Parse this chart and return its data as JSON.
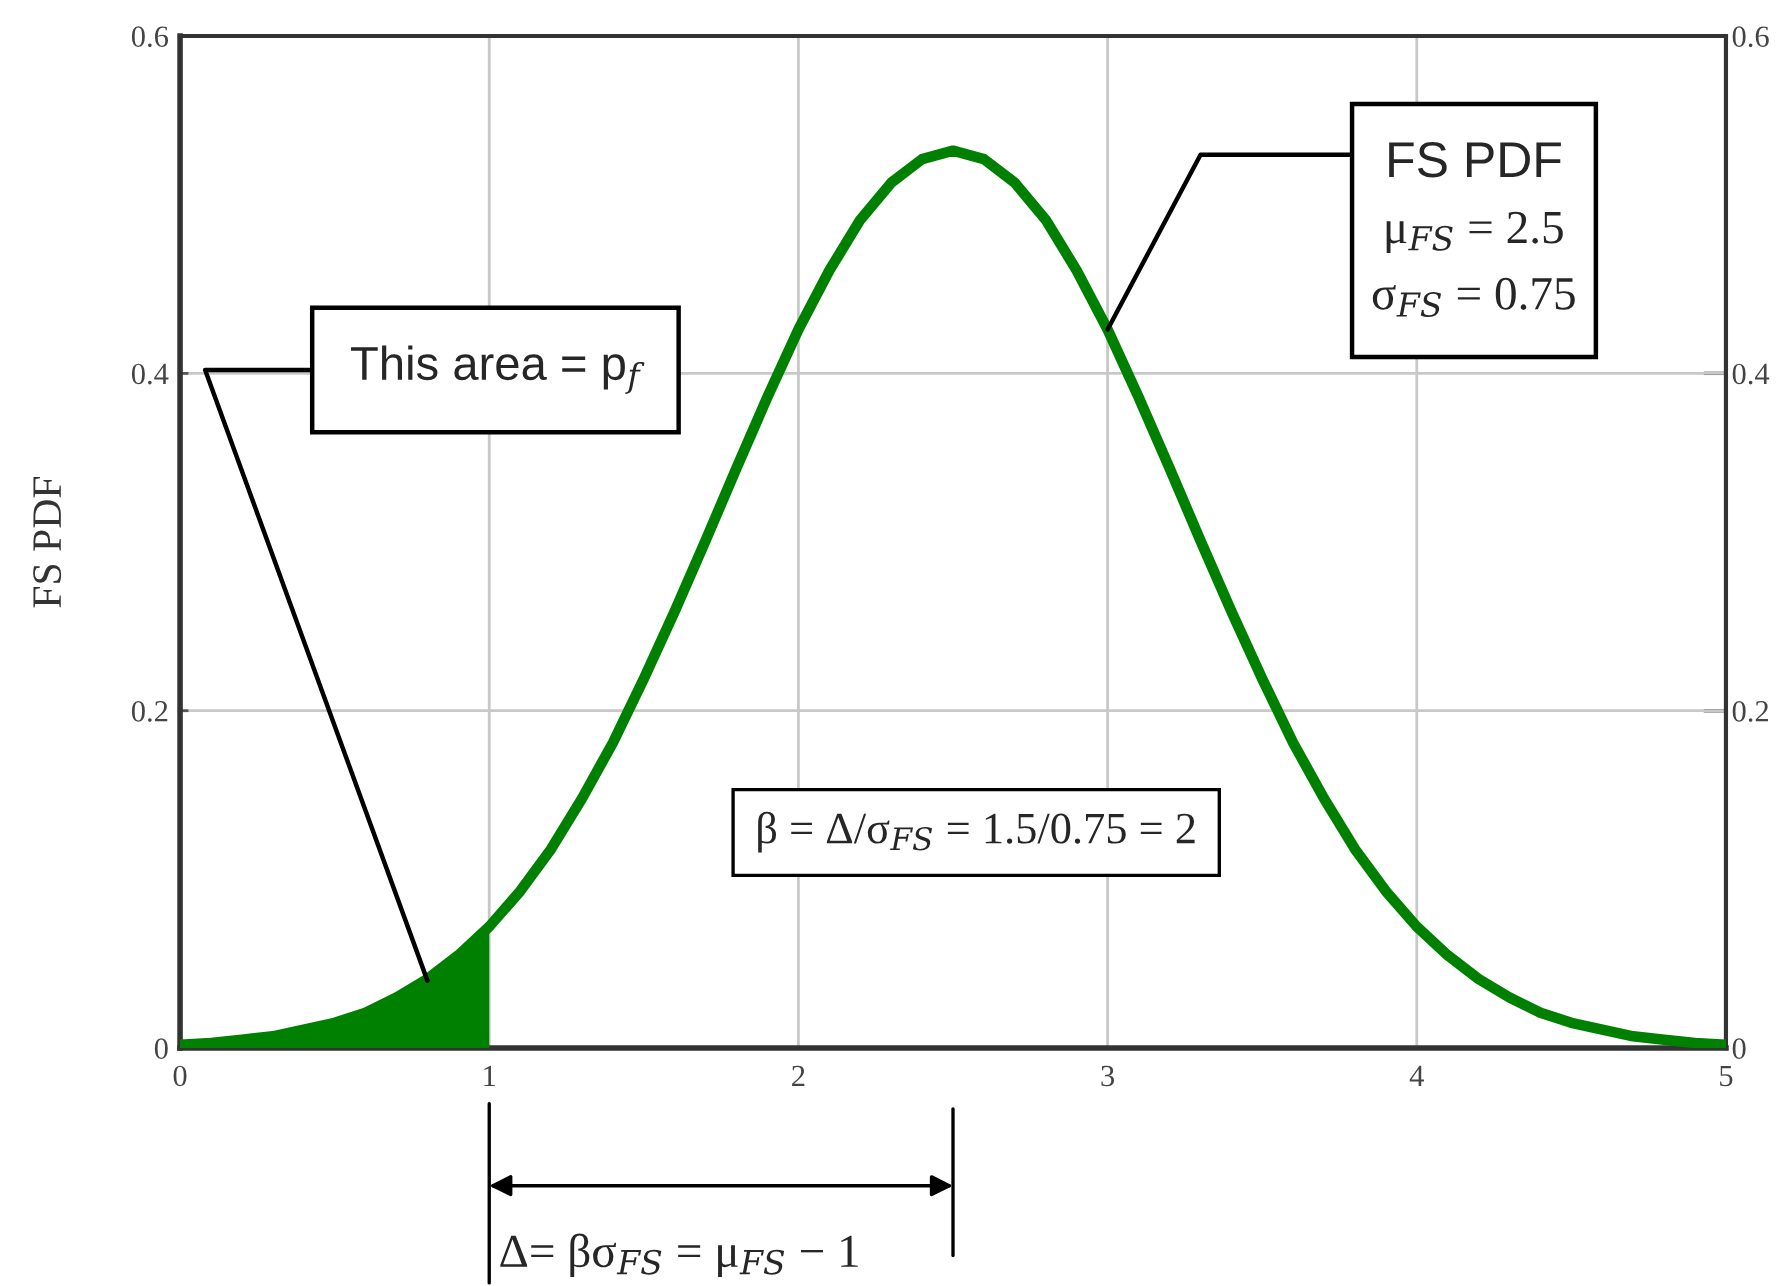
{
  "chart_data": {
    "type": "line",
    "ylabel": "FS PDF",
    "x": [
      0,
      0.1,
      0.2,
      0.3,
      0.4,
      0.5,
      0.6,
      0.7,
      0.8,
      0.9,
      1,
      1.1,
      1.2,
      1.3,
      1.4,
      1.5,
      1.6,
      1.7,
      1.8,
      1.9,
      2,
      2.1,
      2.2,
      2.3,
      2.4,
      2.5,
      2.6,
      2.7,
      2.8,
      2.9,
      3,
      3.1,
      3.2,
      3.3,
      3.4,
      3.5,
      3.6,
      3.7,
      3.8,
      3.9,
      4,
      4.1,
      4.2,
      4.3,
      4.4,
      4.5,
      4.6,
      4.7,
      4.8,
      4.9,
      5
    ],
    "series": [
      {
        "color": "#008000",
        "values": [
          0.002,
          0.003,
          0.005,
          0.007,
          0.011,
          0.015,
          0.021,
          0.03,
          0.041,
          0.055,
          0.072,
          0.093,
          0.118,
          0.148,
          0.181,
          0.219,
          0.259,
          0.301,
          0.344,
          0.386,
          0.426,
          0.461,
          0.491,
          0.513,
          0.527,
          0.532,
          0.527,
          0.513,
          0.491,
          0.461,
          0.426,
          0.386,
          0.344,
          0.301,
          0.259,
          0.219,
          0.181,
          0.148,
          0.118,
          0.093,
          0.072,
          0.055,
          0.041,
          0.03,
          0.021,
          0.015,
          0.011,
          0.007,
          0.005,
          0.003,
          0.002
        ]
      },
      {
        "type": "area",
        "color": "#008000",
        "x": [
          0,
          0.1,
          0.2,
          0.3,
          0.4,
          0.5,
          0.6,
          0.7,
          0.8,
          0.9,
          1
        ],
        "values": [
          0.002,
          0.003,
          0.005,
          0.007,
          0.011,
          0.015,
          0.021,
          0.03,
          0.041,
          0.055,
          0.072
        ]
      }
    ],
    "xlim": [
      0,
      5
    ],
    "xticks": [
      0,
      1,
      2,
      3,
      4,
      5
    ],
    "ylim": [
      0,
      0.6
    ],
    "yticks": [
      0,
      0.2,
      0.4,
      0.6
    ],
    "y2lim": [
      0,
      0.6
    ],
    "y2ticks": [
      0,
      0.2,
      0.4,
      0.6
    ],
    "grid": true,
    "annotations": [
      {
        "text": "This area = p$_{f}$",
        "x": 0.8,
        "y": 0.04
      },
      {
        "text": "FS PDF",
        "x": 3,
        "y": 0.426
      },
      "μ$_{FS}$ = 2.5",
      "σ$_{FS}$ = 0.75",
      "β = Δ/σ$_{FS}$ = 1.5/0.75 = 2",
      "Δ= βσ$_{FS}$ = μ$_{FS}$ − 1"
    ]
  }
}
